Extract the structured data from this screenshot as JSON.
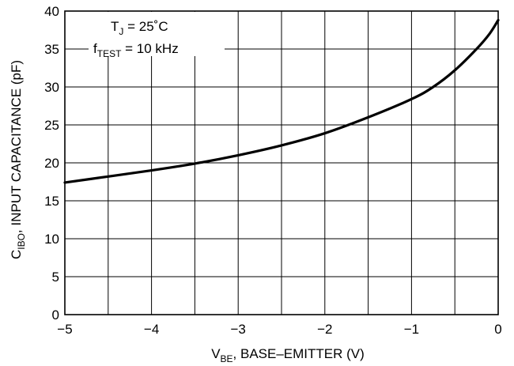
{
  "chart_data": {
    "type": "line",
    "xlabel": {
      "main": "V",
      "sub": "BE",
      "rest": ", BASE–EMITTER (V)"
    },
    "ylabel": {
      "main": "C",
      "sub": "IBO",
      "rest": ", INPUT CAPACITANCE (pF)"
    },
    "xlim": [
      -5,
      0
    ],
    "ylim": [
      0,
      40
    ],
    "x_ticks": [
      -5,
      -4.5,
      -4,
      -3.5,
      -3,
      -2.5,
      -2,
      -1.5,
      -1,
      -0.5,
      0
    ],
    "x_tick_labels": [
      "−5",
      "−4",
      "−3",
      "−2",
      "−1",
      "0"
    ],
    "x_tick_label_values": [
      -5,
      -4,
      -3,
      -2,
      -1,
      0
    ],
    "y_ticks": [
      0,
      5,
      10,
      15,
      20,
      25,
      30,
      35,
      40
    ],
    "y_tick_labels": [
      "0",
      "5",
      "10",
      "15",
      "20",
      "25",
      "30",
      "35",
      "40"
    ],
    "grid": true,
    "annotations": [
      {
        "main": "T",
        "sub": "J",
        "rest": " = 25˚C"
      },
      {
        "main": "f",
        "sub": "TEST",
        "rest": " = 10 kHz"
      }
    ],
    "series": [
      {
        "x": [
          -5.0,
          -4.5,
          -4.0,
          -3.5,
          -3.0,
          -2.5,
          -2.0,
          -1.5,
          -1.0,
          -0.75,
          -0.5,
          -0.25,
          -0.1,
          0.0
        ],
        "values": [
          17.4,
          18.2,
          19.0,
          19.9,
          21.0,
          22.3,
          23.9,
          26.0,
          28.4,
          30.0,
          32.2,
          35.0,
          37.0,
          38.8
        ]
      }
    ]
  }
}
